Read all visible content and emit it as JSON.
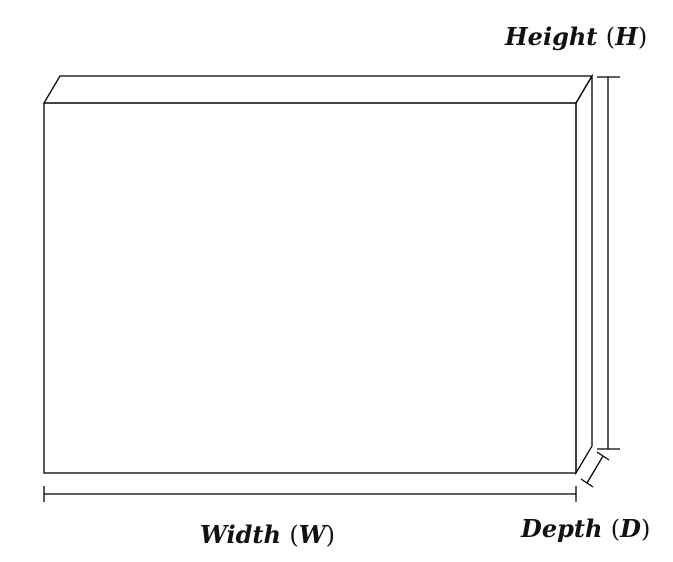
{
  "labels": {
    "height": {
      "word": "Height",
      "symbol": "H"
    },
    "width": {
      "word": "Width",
      "symbol": "W"
    },
    "depth": {
      "word": "Depth",
      "symbol": "D"
    }
  },
  "colors": {
    "stroke": "#000000",
    "background": "#ffffff"
  }
}
